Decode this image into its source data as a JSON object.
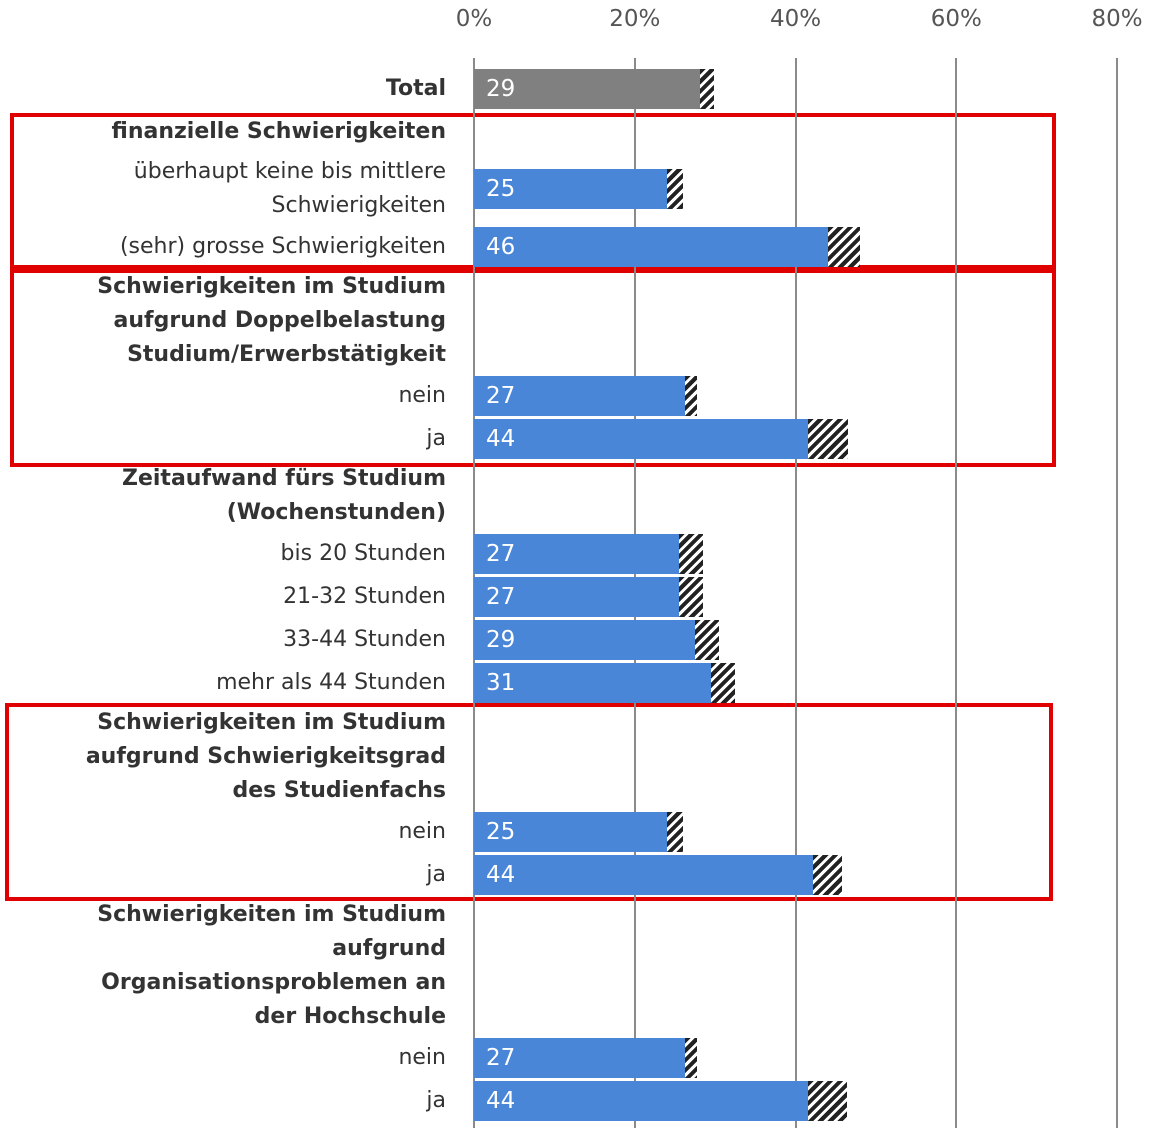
{
  "chart_data": {
    "type": "bar",
    "orientation": "horizontal",
    "categories": [
      "Total",
      "finanzielle Schwierigkeiten",
      "überhaupt keine bis mittlere\nSchwierigkeiten",
      "(sehr) grosse Schwierigkeiten",
      "Schwierigkeiten im Studium\naufgrund Doppelbelastung\nStudium/Erwerbstätigkeit",
      "nein",
      "ja",
      "Zeitaufwand fürs Studium\n(Wochenstunden)",
      "bis 20 Stunden",
      "21-32 Stunden",
      "33-44 Stunden",
      "mehr als 44 Stunden",
      "Schwierigkeiten im Studium\naufgrund Schwierigkeitsgrad\ndes Studienfachs",
      "nein",
      "ja",
      "Schwierigkeiten im Studium\naufgrund\nOrganisationsproblemen an\nder Hochschule",
      "nein",
      "ja"
    ],
    "values": [
      29,
      null,
      25,
      46,
      null,
      27,
      44,
      null,
      27,
      27,
      29,
      31,
      null,
      25,
      44,
      null,
      27,
      44
    ],
    "errors": [
      0.9,
      null,
      1,
      2,
      null,
      0.8,
      2.5,
      null,
      1.5,
      1.5,
      1.5,
      1.5,
      null,
      1,
      1.8,
      null,
      0.8,
      2.4
    ],
    "bold": [
      true,
      true,
      false,
      false,
      true,
      false,
      false,
      true,
      false,
      false,
      false,
      false,
      true,
      false,
      false,
      true,
      false,
      false
    ],
    "bar_colors": [
      "#808080",
      null,
      "#4a86d8",
      "#4a86d8",
      null,
      "#4a86d8",
      "#4a86d8",
      null,
      "#4a86d8",
      "#4a86d8",
      "#4a86d8",
      "#4a86d8",
      null,
      "#4a86d8",
      "#4a86d8",
      null,
      "#4a86d8",
      "#4a86d8"
    ],
    "xlim": [
      0,
      80
    ],
    "xticks": [
      {
        "value": 0,
        "label": "0%"
      },
      {
        "value": 20,
        "label": "20%"
      },
      {
        "value": 40,
        "label": "40%"
      },
      {
        "value": 60,
        "label": "60%"
      },
      {
        "value": 80,
        "label": "80%"
      }
    ],
    "grid": true
  }
}
